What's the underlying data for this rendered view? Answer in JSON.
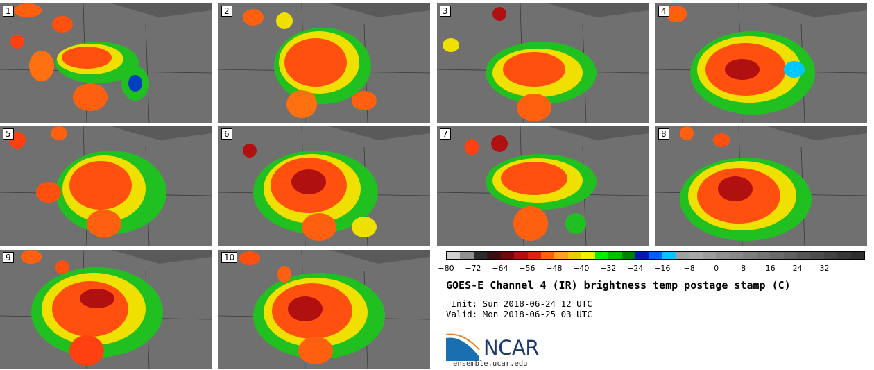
{
  "panels": [
    "1",
    "2",
    "3",
    "4",
    "5",
    "6",
    "7",
    "8",
    "9",
    "10"
  ],
  "colorbar": {
    "ticks": [
      "−80",
      "−72",
      "−64",
      "−56",
      "−48",
      "−40",
      "−32",
      "−24",
      "−16",
      "−8",
      "0",
      "8",
      "16",
      "24",
      "32"
    ],
    "colors": [
      "#d0d0d0",
      "#909090",
      "#2c2c2c",
      "#3a1010",
      "#6e0a0a",
      "#b01010",
      "#e02010",
      "#ff6010",
      "#ffa020",
      "#e8d000",
      "#f0f000",
      "#00f000",
      "#00c000",
      "#008000",
      "#0018b0",
      "#0060ff",
      "#00c8ff",
      "#a0a0a0",
      "#a8a8a8",
      "#9c9c9c",
      "#909090",
      "#888888",
      "#7e7e7e",
      "#747474",
      "#6a6a6a",
      "#606060",
      "#565656",
      "#4c4c4c",
      "#424242",
      "#383838",
      "#2e2e2e"
    ]
  },
  "title": "GOES-E Channel 4 (IR) brightness temp postage stamp (C)",
  "init_line": " Init: Sun 2018-06-24 12 UTC",
  "valid_line": "Valid: Mon 2018-06-25 03 UTC",
  "logo_text": "NCAR",
  "site": "ensemble.ucar.edu"
}
